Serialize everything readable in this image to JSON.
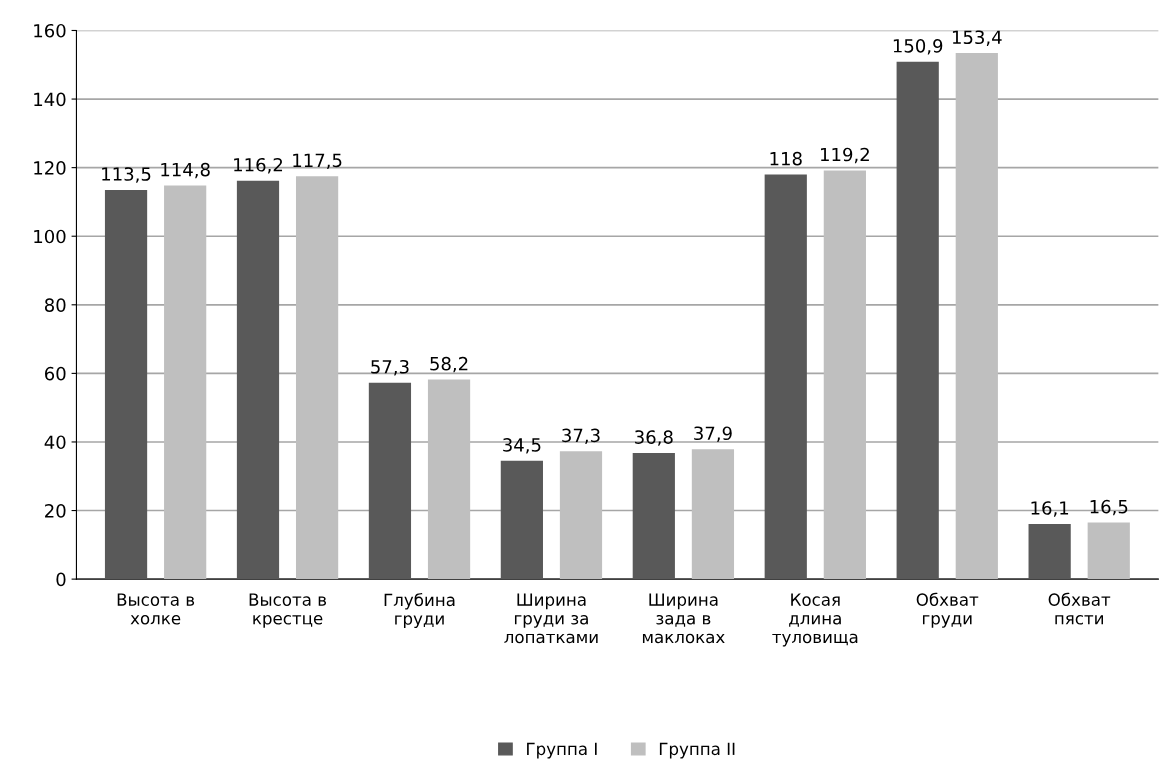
{
  "chart_data": {
    "type": "bar",
    "categories": [
      "Высота в\nхолке",
      "Высота в\nкрестце",
      "Глубина\nгруди",
      "Ширина\nгруди за\nлопатками",
      "Ширина\nзада в\nмаклоках",
      "Косая\nдлина\nтуловища",
      "Обхват\nгруди",
      "Обхват\nпясти"
    ],
    "series": [
      {
        "name": "Группа I",
        "color": "#595959",
        "values": [
          113.5,
          116.2,
          57.3,
          34.5,
          36.8,
          118,
          150.9,
          16.1
        ],
        "value_labels": [
          "113,5",
          "116,2",
          "57,3",
          "34,5",
          "36,8",
          "118",
          "150,9",
          "16,1"
        ]
      },
      {
        "name": "Группа II",
        "color": "#bfbfbf",
        "values": [
          114.8,
          117.5,
          58.2,
          37.3,
          37.9,
          119.2,
          153.4,
          16.5
        ],
        "value_labels": [
          "114,8",
          "117,5",
          "58,2",
          "37,3",
          "37,9",
          "119,2",
          "153,4",
          "16,5"
        ]
      }
    ],
    "ylim": [
      0,
      160
    ],
    "yticks": [
      0,
      20,
      40,
      60,
      80,
      100,
      120,
      140,
      160
    ],
    "grid": "y",
    "legend": "bottom"
  }
}
